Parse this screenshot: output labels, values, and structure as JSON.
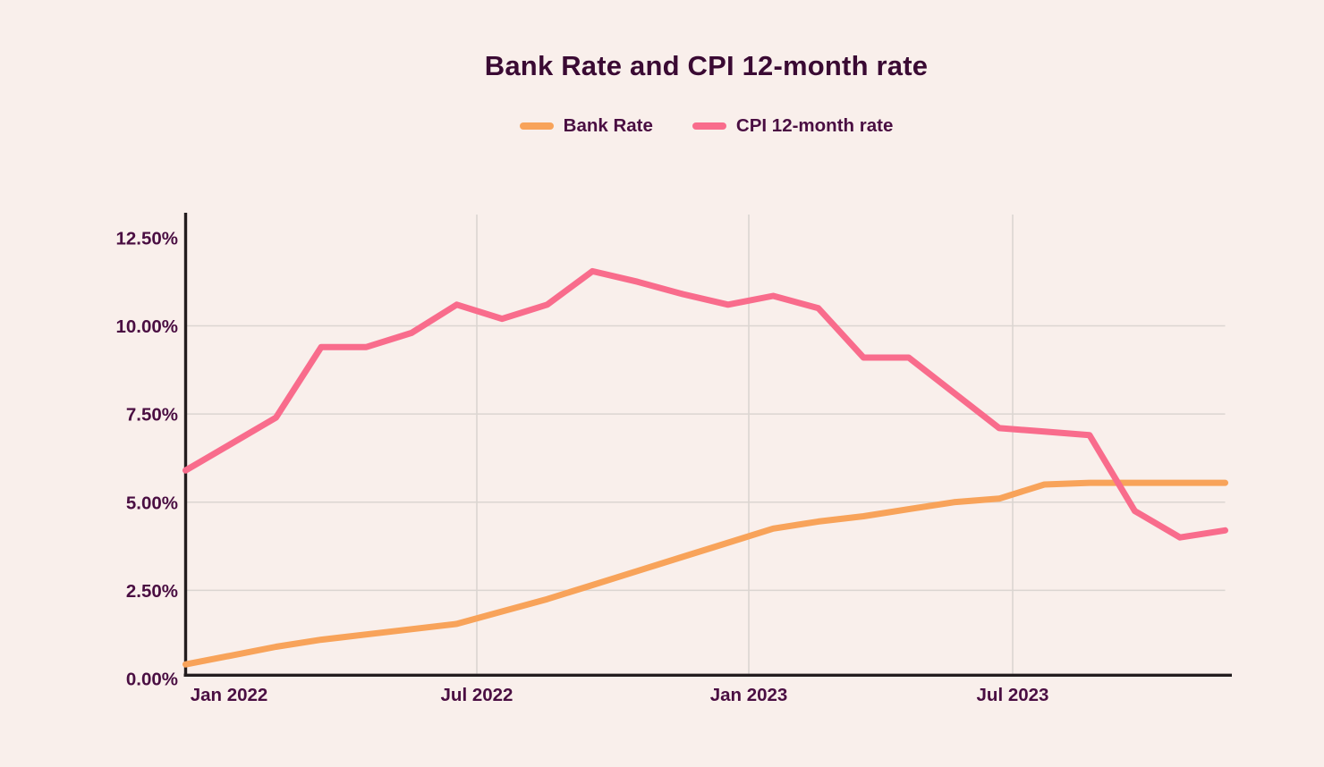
{
  "title": "Bank Rate and CPI 12-month rate",
  "legend": [
    {
      "label": "Bank Rate",
      "color": "#F8A35A"
    },
    {
      "label": "CPI 12-month rate",
      "color": "#F96C8C"
    }
  ],
  "chart_data": {
    "type": "line",
    "x": [
      "Jan 2022",
      "Feb 2022",
      "Mar 2022",
      "Apr 2022",
      "May 2022",
      "Jun 2022",
      "Jul 2022",
      "Aug 2022",
      "Sep 2022",
      "Oct 2022",
      "Nov 2022",
      "Dec 2022",
      "Jan 2023",
      "Feb 2023",
      "Mar 2023",
      "Apr 2023",
      "May 2023",
      "Jun 2023",
      "Jul 2023",
      "Aug 2023",
      "Sep 2023",
      "Oct 2023",
      "Nov 2023",
      "Dec 2023"
    ],
    "series": [
      {
        "name": "Bank Rate",
        "color": "#F8A35A",
        "values": [
          0.4,
          0.65,
          0.9,
          1.1,
          1.25,
          1.4,
          1.55,
          1.9,
          2.25,
          2.65,
          3.05,
          3.45,
          3.85,
          4.25,
          4.45,
          4.6,
          4.8,
          5.0,
          5.1,
          5.5,
          5.55,
          5.55,
          5.55,
          5.55
        ]
      },
      {
        "name": "CPI 12-month rate",
        "color": "#F96C8C",
        "values": [
          5.9,
          6.65,
          7.4,
          9.4,
          9.4,
          9.8,
          10.6,
          10.2,
          10.6,
          11.55,
          11.25,
          10.9,
          10.6,
          10.85,
          10.5,
          9.1,
          9.1,
          8.1,
          7.1,
          7.0,
          6.9,
          4.75,
          4.0,
          4.2
        ]
      }
    ],
    "title": "Bank Rate and CPI 12-month rate",
    "xlabel": "",
    "ylabel": "",
    "x_tick_labels": [
      "Jan 2022",
      "Jul 2022",
      "Jan 2023",
      "Jul 2023"
    ],
    "y_ticks": [
      0,
      2.5,
      5,
      7.5,
      10,
      12.5
    ],
    "y_tick_labels": [
      "0.00%",
      "2.50%",
      "5.00%",
      "7.50%",
      "10.00%",
      "12.50%"
    ],
    "ylim": [
      0,
      12.5
    ],
    "grid": true,
    "legend_position": "top"
  },
  "colors": {
    "background": "#F9EFEB",
    "grid": "#DBD5D1",
    "axis": "#231D1E",
    "tick_label": "#4A0E42",
    "title": "#3A0A33"
  }
}
